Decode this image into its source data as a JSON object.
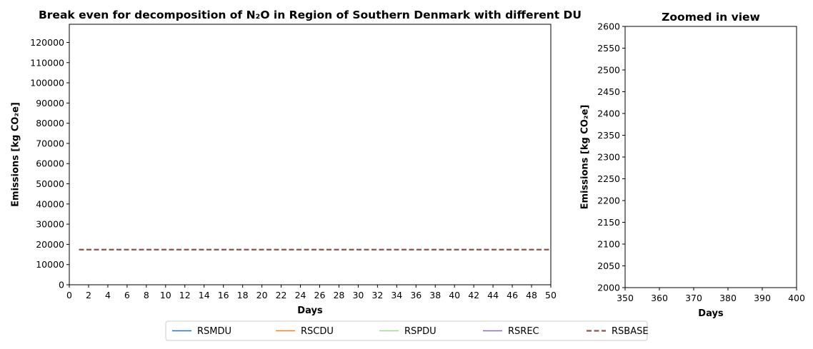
{
  "chart_data": [
    {
      "type": "line",
      "title": "Break even for decomposition of N₂O in Region of Southern Denmark with different DU",
      "xlabel": "Days",
      "ylabel": "Emissions [kg CO₂e]",
      "xlim": [
        0,
        50
      ],
      "ylim": [
        0,
        129000
      ],
      "xticks": [
        0,
        2,
        4,
        6,
        8,
        10,
        12,
        14,
        16,
        18,
        20,
        22,
        24,
        26,
        28,
        30,
        32,
        34,
        36,
        38,
        40,
        42,
        44,
        46,
        48,
        50
      ],
      "yticks": [
        0,
        10000,
        20000,
        30000,
        40000,
        50000,
        60000,
        70000,
        80000,
        90000,
        100000,
        110000,
        120000
      ],
      "grid": false,
      "series": [
        {
          "name": "RSBASE",
          "color": "#8c564b",
          "dashed": true,
          "x": [
            1,
            50
          ],
          "y": [
            17400,
            17400
          ]
        }
      ]
    },
    {
      "type": "line",
      "title": "Zoomed in view",
      "xlabel": "Days",
      "ylabel": "Emissions [kg CO₂e]",
      "xlim": [
        350,
        400
      ],
      "ylim": [
        2000,
        2600
      ],
      "xticks": [
        350,
        360,
        370,
        380,
        390,
        400
      ],
      "yticks": [
        2000,
        2050,
        2100,
        2150,
        2200,
        2250,
        2300,
        2350,
        2400,
        2450,
        2500,
        2550,
        2600
      ],
      "grid": false,
      "series": []
    }
  ],
  "legend": {
    "placement": "bottom-center",
    "entries": [
      {
        "name": "RSMDU",
        "color": "#1f77b4",
        "dashed": false
      },
      {
        "name": "RSCDU",
        "color": "#ff7f0e",
        "dashed": false
      },
      {
        "name": "RSPDU",
        "color": "#98df8a",
        "dashed": false
      },
      {
        "name": "RSREC",
        "color": "#9467bd",
        "dashed": false
      },
      {
        "name": "RSBASE",
        "color": "#8c564b",
        "dashed": true
      }
    ]
  }
}
